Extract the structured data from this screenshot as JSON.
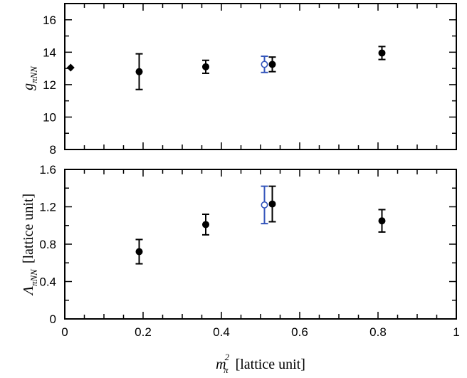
{
  "chart_data": [
    {
      "type": "scatter",
      "panel": "top",
      "ylabel": "g_{πNN}",
      "ylabel_parts": {
        "main": "g",
        "sub": "πNN"
      },
      "xlim": [
        0,
        1
      ],
      "ylim": [
        8,
        17
      ],
      "yticks": [
        8,
        10,
        12,
        14,
        16
      ],
      "series": [
        {
          "marker": "filled-circle",
          "color": "#000000",
          "points": [
            {
              "x": 0.19,
              "y": 12.8,
              "yerr": [
                1.1,
                1.1
              ]
            },
            {
              "x": 0.36,
              "y": 13.1,
              "yerr": [
                0.4,
                0.4
              ]
            },
            {
              "x": 0.53,
              "y": 13.25,
              "yerr": [
                0.45,
                0.45
              ]
            },
            {
              "x": 0.81,
              "y": 13.95,
              "yerr": [
                0.4,
                0.4
              ]
            }
          ]
        },
        {
          "marker": "open-circle",
          "color": "#3355bb",
          "points": [
            {
              "x": 0.51,
              "y": 13.25,
              "yerr": [
                0.5,
                0.5
              ]
            }
          ]
        },
        {
          "marker": "filled-diamond",
          "color": "#000000",
          "points": [
            {
              "x": 0.015,
              "y": 13.05
            }
          ]
        }
      ]
    },
    {
      "type": "scatter",
      "panel": "bottom",
      "ylabel": "Λ_{πNN} [lattice unit]",
      "ylabel_parts": {
        "main": "Λ",
        "sub": "πNN",
        "unit": "[lattice unit]"
      },
      "xlabel": "m_π^2 [lattice unit]",
      "xlabel_parts": {
        "main": "m",
        "sub": "π",
        "sup": "2",
        "unit": "[lattice unit]"
      },
      "xlim": [
        0,
        1
      ],
      "ylim": [
        0,
        1.6
      ],
      "xticks": [
        0,
        0.2,
        0.4,
        0.6,
        0.8,
        1
      ],
      "xtick_labels": [
        "0",
        "0.2",
        "0.4",
        "0.6",
        "0.8",
        "1"
      ],
      "yticks": [
        0,
        0.4,
        0.8,
        1.2,
        1.6
      ],
      "ytick_labels": [
        "0",
        "0.4",
        "0.8",
        "1.2",
        "1.6"
      ],
      "series": [
        {
          "marker": "filled-circle",
          "color": "#000000",
          "points": [
            {
              "x": 0.19,
              "y": 0.72,
              "yerr": [
                0.13,
                0.13
              ]
            },
            {
              "x": 0.36,
              "y": 1.01,
              "yerr": [
                0.11,
                0.11
              ]
            },
            {
              "x": 0.53,
              "y": 1.23,
              "yerr": [
                0.19,
                0.19
              ]
            },
            {
              "x": 0.81,
              "y": 1.05,
              "yerr": [
                0.12,
                0.12
              ]
            }
          ]
        },
        {
          "marker": "open-circle",
          "color": "#3355bb",
          "points": [
            {
              "x": 0.51,
              "y": 1.22,
              "yerr": [
                0.2,
                0.2
              ]
            }
          ]
        }
      ]
    }
  ]
}
